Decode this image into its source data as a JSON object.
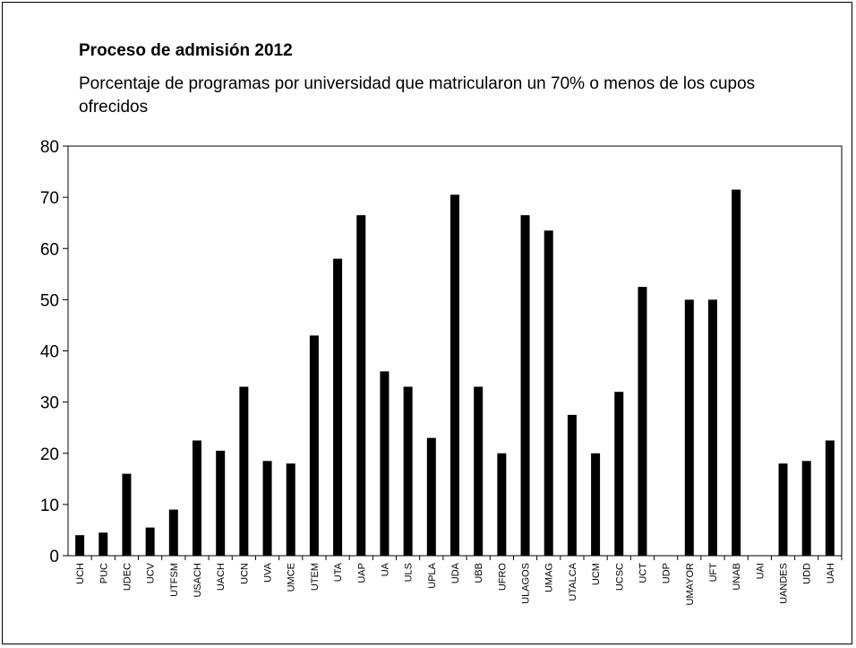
{
  "chart_data": {
    "type": "bar",
    "title": "Proceso de admisión 2012",
    "subtitle": "Porcentaje de programas por universidad que matricularon un 70% o menos de los cupos ofrecidos",
    "xlabel": "",
    "ylabel": "",
    "ylim": [
      0,
      80
    ],
    "yticks": [
      0,
      10,
      20,
      30,
      40,
      50,
      60,
      70,
      80
    ],
    "grid": false,
    "legend": "none",
    "bar_color": "#000000",
    "categories": [
      "UCH",
      "PUC",
      "UDEC",
      "UCV",
      "UTFSM",
      "USACH",
      "UACH",
      "UCN",
      "UVA",
      "UMCE",
      "UTEM",
      "UTA",
      "UAP",
      "UA",
      "ULS",
      "UPLA",
      "UDA",
      "UBB",
      "UFRO",
      "ULAGOS",
      "UMAG",
      "UTALCA",
      "UCM",
      "UCSC",
      "UCT",
      "UDP",
      "UMAYOR",
      "UFT",
      "UNAB",
      "UAI",
      "UANDES",
      "UDD",
      "UAH"
    ],
    "values": [
      4,
      4.5,
      16,
      5.5,
      9,
      22.5,
      20.5,
      33,
      18.5,
      18,
      43,
      58,
      66.5,
      36,
      33,
      23,
      70.5,
      33,
      20,
      66.5,
      63.5,
      27.5,
      20,
      32,
      52.5,
      0,
      50,
      50,
      71.5,
      0,
      18,
      18.5,
      22.5
    ]
  }
}
